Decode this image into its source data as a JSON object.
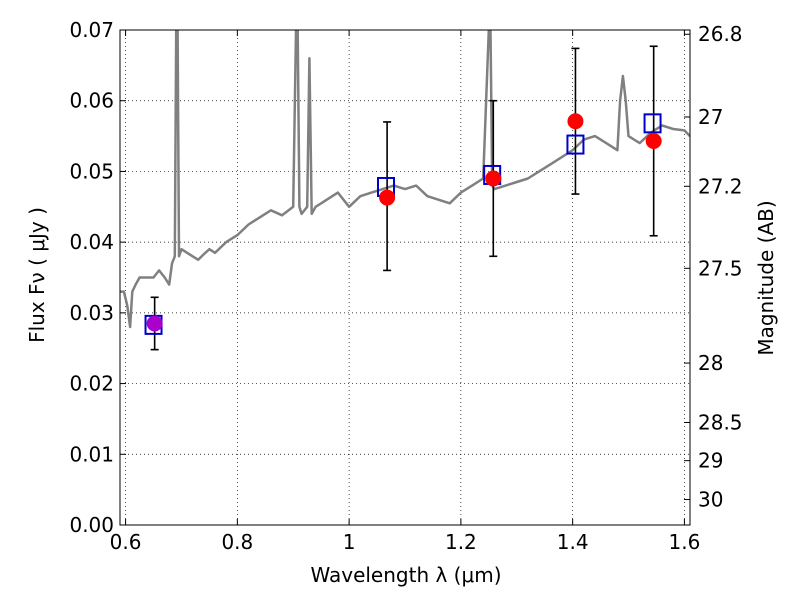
{
  "chart_data": {
    "type": "scatter",
    "title": "",
    "xlabel": "Wavelength  λ (μm)",
    "ylabel": "Flux  Fν  ( μJy )",
    "ylabel_right": "Magnitude (AB)",
    "xlim": [
      0.59,
      1.61
    ],
    "ylim": [
      0.0,
      0.07
    ],
    "grid": true,
    "grid_style": "dotted",
    "x_ticks": [
      0.6,
      0.8,
      1.0,
      1.2,
      1.4,
      1.6
    ],
    "x_tick_labels": [
      "0.6",
      "0.8",
      "1",
      "1.2",
      "1.4",
      "1.6"
    ],
    "y_ticks": [
      0.0,
      0.01,
      0.02,
      0.03,
      0.04,
      0.05,
      0.06,
      0.07
    ],
    "y_tick_labels": [
      "0.00",
      "0.01",
      "0.02",
      "0.03",
      "0.04",
      "0.05",
      "0.06",
      "0.07"
    ],
    "right_ticks": [
      {
        "label": "26.8",
        "flux": 0.0694
      },
      {
        "label": "27",
        "flux": 0.0577
      },
      {
        "label": "27.2",
        "flux": 0.0479
      },
      {
        "label": "27.5",
        "flux": 0.0363
      },
      {
        "label": "28",
        "flux": 0.0229
      },
      {
        "label": "28.5",
        "flux": 0.0145
      },
      {
        "label": "29",
        "flux": 0.0091
      },
      {
        "label": "30",
        "flux": 0.0036
      }
    ],
    "series": [
      {
        "type": "line",
        "color": "#808080",
        "x": [
          0.59,
          0.597,
          0.603,
          0.608,
          0.612,
          0.618,
          0.625,
          0.633,
          0.64,
          0.65,
          0.66,
          0.67,
          0.678,
          0.683,
          0.688,
          0.6905,
          0.693,
          0.6955,
          0.7,
          0.71,
          0.72,
          0.73,
          0.74,
          0.75,
          0.76,
          0.78,
          0.8,
          0.82,
          0.84,
          0.86,
          0.88,
          0.9,
          0.905,
          0.908,
          0.911,
          0.915,
          0.925,
          0.929,
          0.933,
          0.94,
          0.95,
          0.96,
          0.98,
          1.0,
          1.02,
          1.04,
          1.06,
          1.08,
          1.1,
          1.12,
          1.14,
          1.16,
          1.18,
          1.2,
          1.22,
          1.24,
          1.25,
          1.253,
          1.256,
          1.26,
          1.28,
          1.3,
          1.32,
          1.34,
          1.36,
          1.38,
          1.4,
          1.42,
          1.44,
          1.46,
          1.48,
          1.485,
          1.49,
          1.495,
          1.5,
          1.52,
          1.54,
          1.56,
          1.58,
          1.6,
          1.61
        ],
        "y": [
          0.033,
          0.033,
          0.031,
          0.028,
          0.033,
          0.034,
          0.035,
          0.035,
          0.035,
          0.035,
          0.036,
          0.035,
          0.034,
          0.037,
          0.038,
          0.07,
          0.07,
          0.038,
          0.039,
          0.0385,
          0.038,
          0.0375,
          0.0383,
          0.039,
          0.0385,
          0.04,
          0.041,
          0.0425,
          0.0435,
          0.0445,
          0.0438,
          0.045,
          0.07,
          0.07,
          0.045,
          0.044,
          0.045,
          0.066,
          0.044,
          0.045,
          0.0455,
          0.046,
          0.047,
          0.045,
          0.0465,
          0.047,
          0.0475,
          0.048,
          0.0475,
          0.048,
          0.0465,
          0.046,
          0.0455,
          0.047,
          0.048,
          0.049,
          0.07,
          0.07,
          0.048,
          0.0475,
          0.048,
          0.0485,
          0.049,
          0.05,
          0.051,
          0.052,
          0.053,
          0.0545,
          0.055,
          0.054,
          0.053,
          0.06,
          0.0635,
          0.06,
          0.055,
          0.054,
          0.0555,
          0.0565,
          0.056,
          0.0558,
          0.055
        ]
      },
      {
        "type": "errorbar",
        "color": "#000000",
        "x": [
          0.652,
          1.068,
          1.258,
          1.405,
          1.545
        ],
        "y": [
          0.0285,
          0.0463,
          0.049,
          0.0571,
          0.0543
        ],
        "yerr_low": [
          0.0037,
          0.0103,
          0.011,
          0.0103,
          0.0134
        ],
        "yerr_high": [
          0.0037,
          0.0107,
          0.011,
          0.0103,
          0.0134
        ]
      },
      {
        "type": "scatter",
        "marker": "square-open",
        "color": "#0000cc",
        "x": [
          0.65,
          1.066,
          1.256,
          1.405,
          1.543
        ],
        "y": [
          0.0283,
          0.0478,
          0.0495,
          0.0538,
          0.0568
        ]
      },
      {
        "type": "scatter",
        "marker": "circle-filled",
        "color": "#ff0000",
        "x": [
          1.068,
          1.258,
          1.405,
          1.545
        ],
        "y": [
          0.0463,
          0.049,
          0.0571,
          0.0543
        ]
      },
      {
        "type": "scatter",
        "marker": "circle-filled",
        "color": "#aa00cc",
        "x": [
          0.652
        ],
        "y": [
          0.0285
        ]
      }
    ]
  }
}
